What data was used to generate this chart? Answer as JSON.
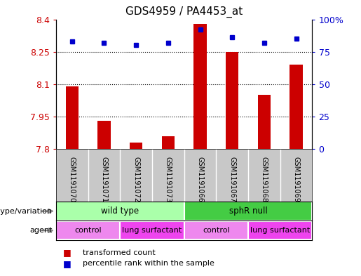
{
  "title": "GDS4959 / PA4453_at",
  "samples": [
    "GSM1191070",
    "GSM1191071",
    "GSM1191072",
    "GSM1191073",
    "GSM1191066",
    "GSM1191067",
    "GSM1191068",
    "GSM1191069"
  ],
  "transformed_counts": [
    8.09,
    7.93,
    7.83,
    7.86,
    8.38,
    8.25,
    8.05,
    8.19
  ],
  "percentile_ranks": [
    83,
    82,
    80,
    82,
    92,
    86,
    82,
    85
  ],
  "ylim_left": [
    7.8,
    8.4
  ],
  "ylim_right": [
    0,
    100
  ],
  "yticks_left": [
    7.8,
    7.95,
    8.1,
    8.25,
    8.4
  ],
  "yticks_right": [
    0,
    25,
    50,
    75,
    100
  ],
  "ytick_labels_left": [
    "7.8",
    "7.95",
    "8.1",
    "8.25",
    "8.4"
  ],
  "ytick_labels_right": [
    "0",
    "25",
    "50",
    "75",
    "100%"
  ],
  "bar_color": "#cc0000",
  "dot_color": "#0000cc",
  "bar_bottom": 7.8,
  "grid_lines": [
    7.95,
    8.1,
    8.25
  ],
  "genotype_groups": [
    {
      "label": "wild type",
      "start": 0,
      "end": 4,
      "color": "#aaffaa"
    },
    {
      "label": "sphR null",
      "start": 4,
      "end": 8,
      "color": "#44cc44"
    }
  ],
  "agent_groups": [
    {
      "label": "control",
      "start": 0,
      "end": 2,
      "color": "#ee88ee"
    },
    {
      "label": "lung surfactant",
      "start": 2,
      "end": 4,
      "color": "#ee44ee"
    },
    {
      "label": "control",
      "start": 4,
      "end": 6,
      "color": "#ee88ee"
    },
    {
      "label": "lung surfactant",
      "start": 6,
      "end": 8,
      "color": "#ee44ee"
    }
  ],
  "legend_items": [
    {
      "label": "transformed count",
      "color": "#cc0000"
    },
    {
      "label": "percentile rank within the sample",
      "color": "#0000cc"
    }
  ],
  "sample_bg_color": "#c8c8c8",
  "plot_bg_color": "#ffffff",
  "label_genotype": "genotype/variation",
  "label_agent": "agent",
  "arrow_color": "#888888",
  "bar_width": 0.4
}
